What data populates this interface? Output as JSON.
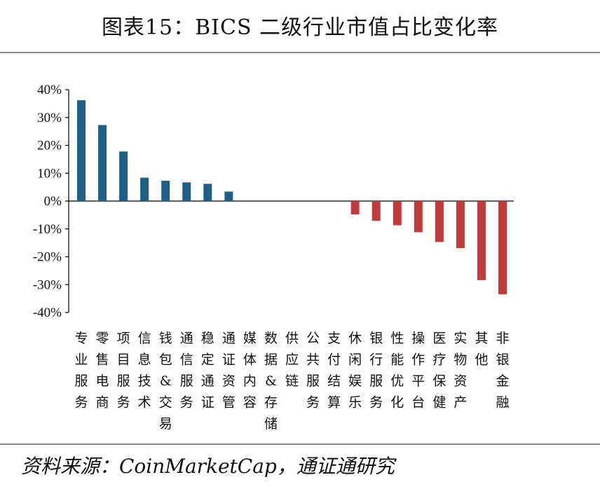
{
  "title": "图表15：BICS 二级行业市值占比变化率",
  "source": "资料来源：CoinMarketCap，通证通研究",
  "colors": {
    "positive": "#1f5f86",
    "negative": "#c23b3b",
    "axis": "#000000",
    "rule": "#8c8c8c"
  },
  "chart_data": {
    "type": "bar",
    "title": "图表15：BICS 二级行业市值占比变化率",
    "xlabel": "",
    "ylabel": "",
    "ylim": [
      -40,
      40
    ],
    "yticks": [
      "40%",
      "30%",
      "20%",
      "10%",
      "0%",
      "-10%",
      "-20%",
      "-30%",
      "-40%"
    ],
    "grid": false,
    "categories": [
      "专业服务",
      "零售电商",
      "项目服务",
      "信息技术",
      "钱包&交易",
      "通信服务",
      "稳定通证",
      "通证资管",
      "媒体内容",
      "数据&存储",
      "供应链",
      "公共服务",
      "支付结算",
      "休闲娱乐",
      "银行服务",
      "性能优化",
      "操作平台",
      "医疗保健",
      "实物资产",
      "其他",
      "非银金融"
    ],
    "values": [
      36.2,
      27.3,
      17.8,
      8.4,
      7.3,
      6.7,
      6.2,
      3.4,
      0,
      0,
      0,
      0,
      0,
      -4.8,
      -7.1,
      -8.7,
      -11.2,
      -14.7,
      -16.9,
      -28.4,
      -33.5
    ]
  }
}
